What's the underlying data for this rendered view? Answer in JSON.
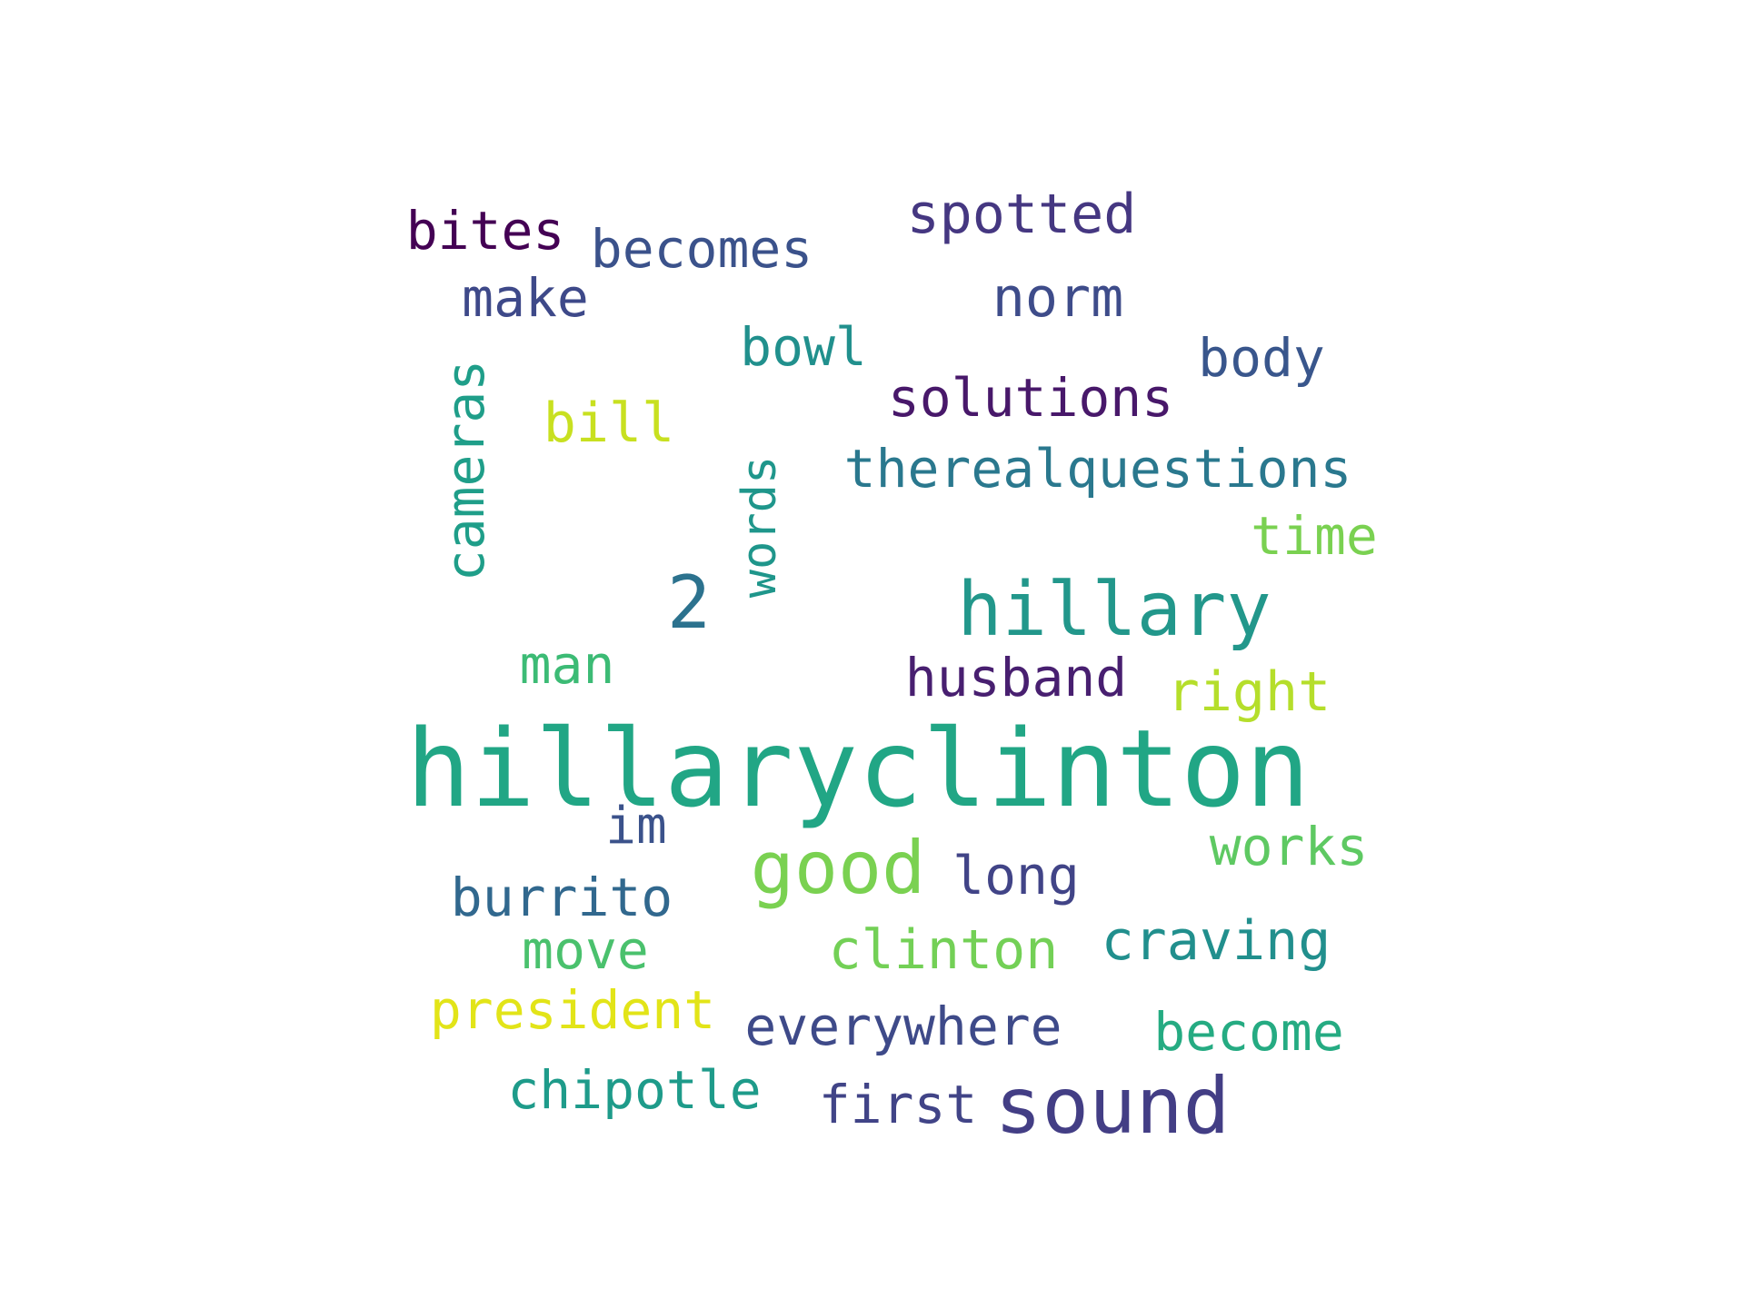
{
  "words": [
    {
      "text": "hillaryclinton",
      "color": "#21a685"
    },
    {
      "text": "hillary",
      "color": "#22978b"
    },
    {
      "text": "sound",
      "color": "#433e85"
    },
    {
      "text": "good",
      "color": "#7ad151"
    },
    {
      "text": "2",
      "color": "#2c728e"
    },
    {
      "text": "spotted",
      "color": "#453781"
    },
    {
      "text": "bites",
      "color": "#440154"
    },
    {
      "text": "becomes",
      "color": "#3b528b"
    },
    {
      "text": "make",
      "color": "#3e4989"
    },
    {
      "text": "norm",
      "color": "#3e4c8a"
    },
    {
      "text": "bowl",
      "color": "#21908d"
    },
    {
      "text": "body",
      "color": "#39568c"
    },
    {
      "text": "solutions",
      "color": "#48186a"
    },
    {
      "text": "cameras",
      "color": "#1f9e89"
    },
    {
      "text": "bill",
      "color": "#c8e020"
    },
    {
      "text": "words",
      "color": "#1f968b"
    },
    {
      "text": "therealquestions",
      "color": "#2a788e"
    },
    {
      "text": "time",
      "color": "#7ad151"
    },
    {
      "text": "man",
      "color": "#3cbb75"
    },
    {
      "text": "husband",
      "color": "#481f70"
    },
    {
      "text": "right",
      "color": "#b5de2b"
    },
    {
      "text": "im",
      "color": "#3b528b"
    },
    {
      "text": "works",
      "color": "#5ec962"
    },
    {
      "text": "long",
      "color": "#414487"
    },
    {
      "text": "burrito",
      "color": "#31688e"
    },
    {
      "text": "move",
      "color": "#4ac16d"
    },
    {
      "text": "clinton",
      "color": "#73d056"
    },
    {
      "text": "craving",
      "color": "#218f8d"
    },
    {
      "text": "president",
      "color": "#e2e418"
    },
    {
      "text": "everywhere",
      "color": "#3e4a89"
    },
    {
      "text": "become",
      "color": "#25ab82"
    },
    {
      "text": "chipotle",
      "color": "#1e9b8a"
    },
    {
      "text": "first",
      "color": "#414487"
    }
  ]
}
